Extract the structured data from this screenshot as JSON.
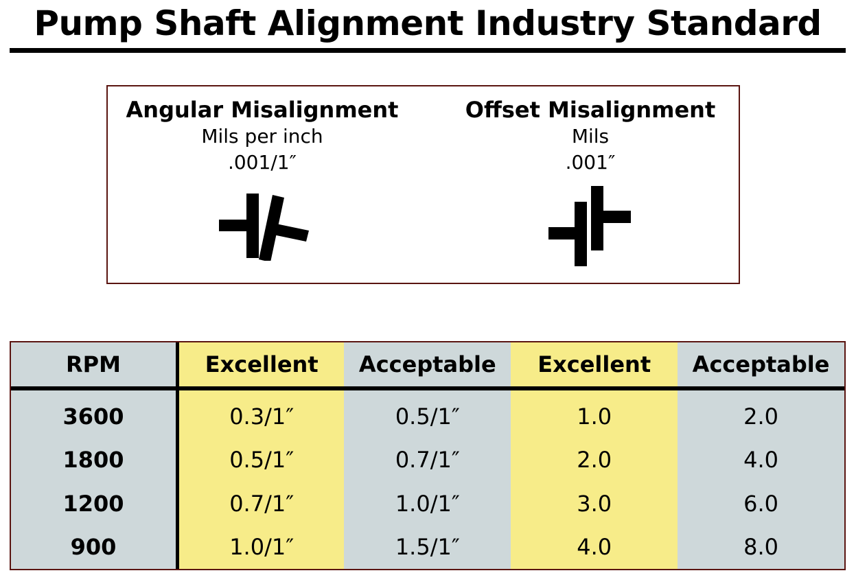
{
  "title": "Pump Shaft Alignment Industry Standard",
  "legend": {
    "angular": {
      "heading": "Angular Misalignment",
      "unit": "Mils per inch",
      "value": ".001/1″",
      "icon": "angular-misalignment-icon"
    },
    "offset": {
      "heading": "Offset Misalignment",
      "unit": "Mils",
      "value": ".001″",
      "icon": "offset-misalignment-icon"
    }
  },
  "colors": {
    "highlight_yellow": "#f7ec89",
    "cell_grey": "#ced8da",
    "border_dark_red": "#5a1410"
  },
  "table": {
    "headers": [
      "RPM",
      "Excellent",
      "Acceptable",
      "Excellent",
      "Acceptable"
    ],
    "rows": [
      [
        "3600",
        "0.3/1″",
        "0.5/1″",
        "1.0",
        "2.0"
      ],
      [
        "1800",
        "0.5/1″",
        "0.7/1″",
        "2.0",
        "4.0"
      ],
      [
        "1200",
        "0.7/1″",
        "1.0/1″",
        "3.0",
        "6.0"
      ],
      [
        "900",
        "1.0/1″",
        "1.5/1″",
        "4.0",
        "8.0"
      ]
    ]
  }
}
